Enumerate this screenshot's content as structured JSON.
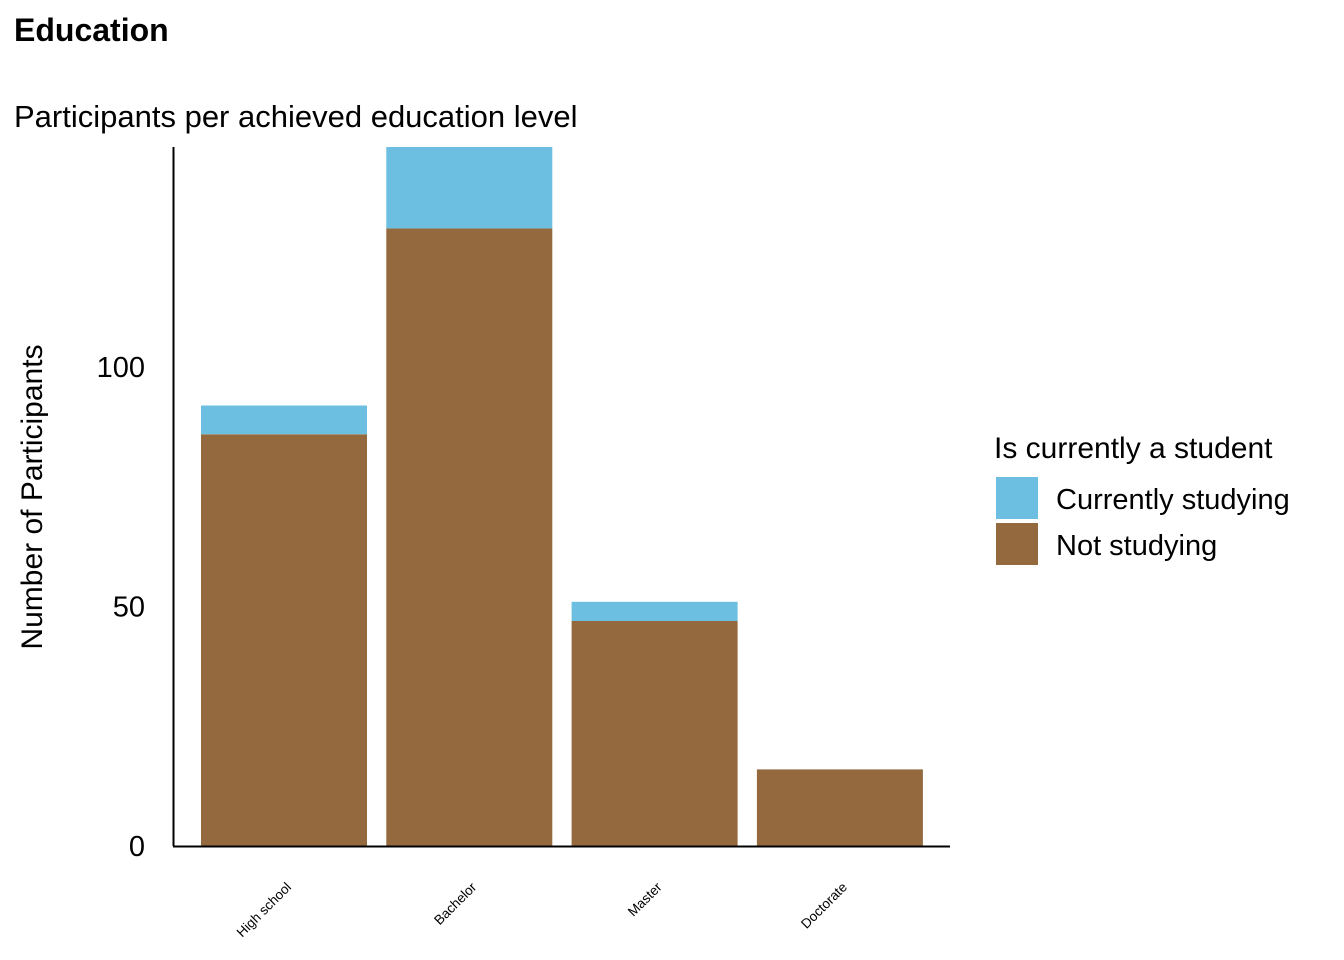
{
  "chart_data": {
    "type": "bar",
    "stacked": true,
    "title": "Education",
    "subtitle": "Participants per achieved education level",
    "xlabel": "",
    "ylabel": "Number of Participants",
    "categories": [
      "High school",
      "Bachelor",
      "Master",
      "Doctorate"
    ],
    "series": [
      {
        "name": "Not studying",
        "color": "#93693D",
        "values": [
          86,
          129,
          47,
          16
        ]
      },
      {
        "name": "Currently studying",
        "color": "#6CBFE0",
        "values": [
          6,
          17,
          4,
          0
        ]
      }
    ],
    "ylim": [
      0,
      146
    ],
    "yticks": [
      0,
      50,
      100
    ],
    "ytick_labels": [
      "0",
      "50",
      "100"
    ],
    "legend": {
      "title": "Is currently a student",
      "position": "right",
      "items": [
        {
          "label": "Currently studying",
          "color": "#6CBFE0"
        },
        {
          "label": "Not studying",
          "color": "#93693D"
        }
      ]
    },
    "grid": false
  }
}
